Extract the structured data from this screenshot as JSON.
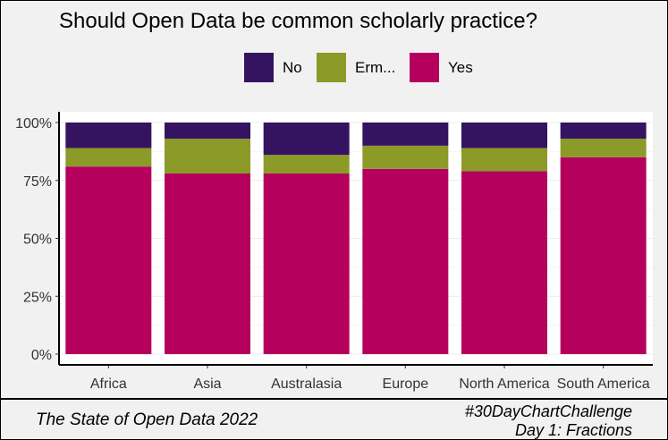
{
  "chart_data": {
    "type": "bar",
    "stacked": true,
    "normalized": true,
    "title": "Should Open Data be common scholarly practice?",
    "xlabel": "",
    "ylabel": "",
    "categories": [
      "Africa",
      "Asia",
      "Australasia",
      "Europe",
      "North America",
      "South America"
    ],
    "series": [
      {
        "name": "Yes",
        "color": "#b5005e",
        "values": [
          81,
          78,
          78,
          80,
          79,
          85
        ]
      },
      {
        "name": "Erm...",
        "color": "#8c9a27",
        "values": [
          8,
          15,
          8,
          10,
          10,
          8
        ]
      },
      {
        "name": "No",
        "color": "#341460",
        "values": [
          11,
          7,
          14,
          10,
          11,
          7
        ]
      }
    ],
    "ylim": [
      0,
      100
    ],
    "y_ticks": [
      "0%",
      "25%",
      "50%",
      "75%",
      "100%"
    ],
    "legend_position": "top",
    "legend_order": [
      "No",
      "Erm...",
      "Yes"
    ],
    "grid": true
  },
  "caption": {
    "left": "The State of Open Data 2022",
    "right_line1": "#30DayChartChallenge",
    "right_line2": "Day 1: Fractions"
  }
}
